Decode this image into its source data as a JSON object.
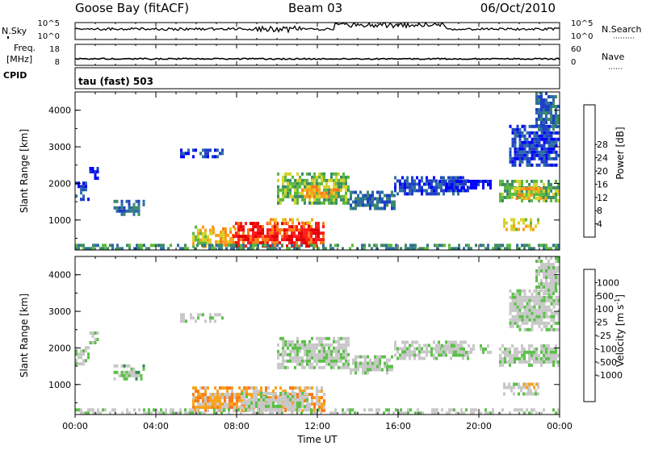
{
  "header": {
    "station": "Goose Bay (fitACF)",
    "beam": "Beam 03",
    "date": "06/Oct/2010"
  },
  "sky_panel": {
    "left_label": "N.Sky",
    "right_label": "N.Search",
    "left_ticks": [
      "10^5",
      "10^0"
    ],
    "right_ticks": [
      "10^5",
      "10^0"
    ]
  },
  "freq_panel": {
    "left_label_line1": "Freq.",
    "left_label_line2": "[MHz]",
    "right_label": "Nave",
    "left_ticks": [
      "18",
      "8"
    ],
    "right_ticks": [
      "60",
      "0"
    ]
  },
  "cpid": {
    "label": "CPID",
    "text": "tau (fast) 503"
  },
  "chart_data": [
    {
      "type": "heatmap",
      "name": "power",
      "ylabel": "Slant Range [km]",
      "ylim": [
        180,
        4500
      ],
      "yticks": [
        "1000",
        "2000",
        "3000",
        "4000"
      ],
      "xlim": [
        0,
        24
      ],
      "colorbar": {
        "label": "Power [dB]",
        "tick_labels": [
          "4",
          "8",
          "12",
          "16",
          "20",
          "24",
          "28"
        ],
        "colors": [
          "#0000ff",
          "#1e40c8",
          "#2e6ea2",
          "#3d8b66",
          "#5cb83d",
          "#d7d22a",
          "#fd9f1c",
          "#f97b18",
          "#ff1a1a",
          "#e10000"
        ]
      },
      "echo_regions": [
        {
          "t0": 0.0,
          "t1": 0.7,
          "r0": 1600,
          "r1": 2050,
          "level": 1
        },
        {
          "t0": 0.7,
          "t1": 1.1,
          "r0": 2100,
          "r1": 2450,
          "level": 0
        },
        {
          "t0": 1.9,
          "t1": 3.4,
          "r0": 1150,
          "r1": 1550,
          "level": 2
        },
        {
          "t0": 5.2,
          "t1": 7.3,
          "r0": 2700,
          "r1": 2950,
          "level": 1
        },
        {
          "t0": 5.8,
          "t1": 6.8,
          "r0": 320,
          "r1": 850,
          "level": 5
        },
        {
          "t0": 6.8,
          "t1": 8.0,
          "r0": 300,
          "r1": 800,
          "level": 6
        },
        {
          "t0": 7.8,
          "t1": 12.3,
          "r0": 250,
          "r1": 950,
          "level": 8
        },
        {
          "t0": 9.4,
          "t1": 11.8,
          "r0": 900,
          "r1": 1050,
          "level": 6
        },
        {
          "t0": 10.0,
          "t1": 13.6,
          "r0": 1500,
          "r1": 2300,
          "level": 4
        },
        {
          "t0": 11.2,
          "t1": 13.0,
          "r0": 1600,
          "r1": 1950,
          "level": 6
        },
        {
          "t0": 13.6,
          "t1": 15.8,
          "r0": 1300,
          "r1": 1800,
          "level": 2
        },
        {
          "t0": 15.8,
          "t1": 19.5,
          "r0": 1700,
          "r1": 2200,
          "level": 1
        },
        {
          "t0": 18.0,
          "t1": 20.6,
          "r0": 1850,
          "r1": 2100,
          "level": 0
        },
        {
          "t0": 21.0,
          "t1": 24.0,
          "r0": 1500,
          "r1": 2100,
          "level": 4
        },
        {
          "t0": 21.7,
          "t1": 23.5,
          "r0": 1620,
          "r1": 1900,
          "level": 6
        },
        {
          "t0": 21.2,
          "t1": 22.9,
          "r0": 750,
          "r1": 1050,
          "level": 5
        },
        {
          "t0": 21.5,
          "t1": 24.0,
          "r0": 2500,
          "r1": 3600,
          "level": 1
        },
        {
          "t0": 22.8,
          "t1": 24.0,
          "r0": 3500,
          "r1": 4500,
          "level": 2
        },
        {
          "t0": 0.0,
          "t1": 24.0,
          "r0": 180,
          "r1": 350,
          "level": 3
        }
      ]
    },
    {
      "type": "heatmap",
      "name": "velocity",
      "ylabel": "Slant Range [km]",
      "xlabel": "Time UT",
      "ylim": [
        180,
        4500
      ],
      "yticks": [
        "1000",
        "2000",
        "3000",
        "4000"
      ],
      "xlim": [
        0,
        24
      ],
      "xticks": [
        "00:00",
        "04:00",
        "08:00",
        "12:00",
        "16:00",
        "20:00",
        "00:00"
      ],
      "colorbar": {
        "label": "Velocity [m s",
        "label_sup": "-1",
        "label_end": "]",
        "tick_labels": [
          "1000",
          "500",
          "100",
          "25",
          "-25",
          "-100",
          "-500",
          "-1000"
        ],
        "colors": [
          "#1a33cc",
          "#2e5ba3",
          "#2f8a4f",
          "#5cc04a",
          "#c8c8c8",
          "#c8c8c8",
          "#f8a21b",
          "#f97b18",
          "#ff3b10",
          "#e10000"
        ]
      },
      "echo_regions": [
        {
          "t0": 0.0,
          "t1": 0.7,
          "r0": 1600,
          "r1": 2050,
          "level": 4
        },
        {
          "t0": 0.7,
          "t1": 1.1,
          "r0": 2100,
          "r1": 2450,
          "level": 4
        },
        {
          "t0": 1.9,
          "t1": 3.4,
          "r0": 1150,
          "r1": 1550,
          "level": 3
        },
        {
          "t0": 5.2,
          "t1": 7.3,
          "r0": 2700,
          "r1": 2950,
          "level": 4
        },
        {
          "t0": 5.8,
          "t1": 12.3,
          "r0": 250,
          "r1": 950,
          "level": 6
        },
        {
          "t0": 8.2,
          "t1": 11.5,
          "r0": 300,
          "r1": 800,
          "level": 4
        },
        {
          "t0": 10.0,
          "t1": 13.6,
          "r0": 1500,
          "r1": 2300,
          "level": 4
        },
        {
          "t0": 13.6,
          "t1": 15.8,
          "r0": 1300,
          "r1": 1800,
          "level": 4
        },
        {
          "t0": 15.8,
          "t1": 19.5,
          "r0": 1700,
          "r1": 2200,
          "level": 4
        },
        {
          "t0": 18.0,
          "t1": 20.6,
          "r0": 1850,
          "r1": 2100,
          "level": 4
        },
        {
          "t0": 21.0,
          "t1": 24.0,
          "r0": 1500,
          "r1": 2100,
          "level": 4
        },
        {
          "t0": 21.2,
          "t1": 22.9,
          "r0": 750,
          "r1": 1050,
          "level": 4
        },
        {
          "t0": 22.2,
          "t1": 22.9,
          "r0": 900,
          "r1": 1050,
          "level": 6
        },
        {
          "t0": 21.5,
          "t1": 24.0,
          "r0": 2500,
          "r1": 3600,
          "level": 4
        },
        {
          "t0": 22.8,
          "t1": 24.0,
          "r0": 3500,
          "r1": 4500,
          "level": 4
        },
        {
          "t0": 0.0,
          "t1": 24.0,
          "r0": 180,
          "r1": 350,
          "level": 4
        }
      ]
    }
  ]
}
